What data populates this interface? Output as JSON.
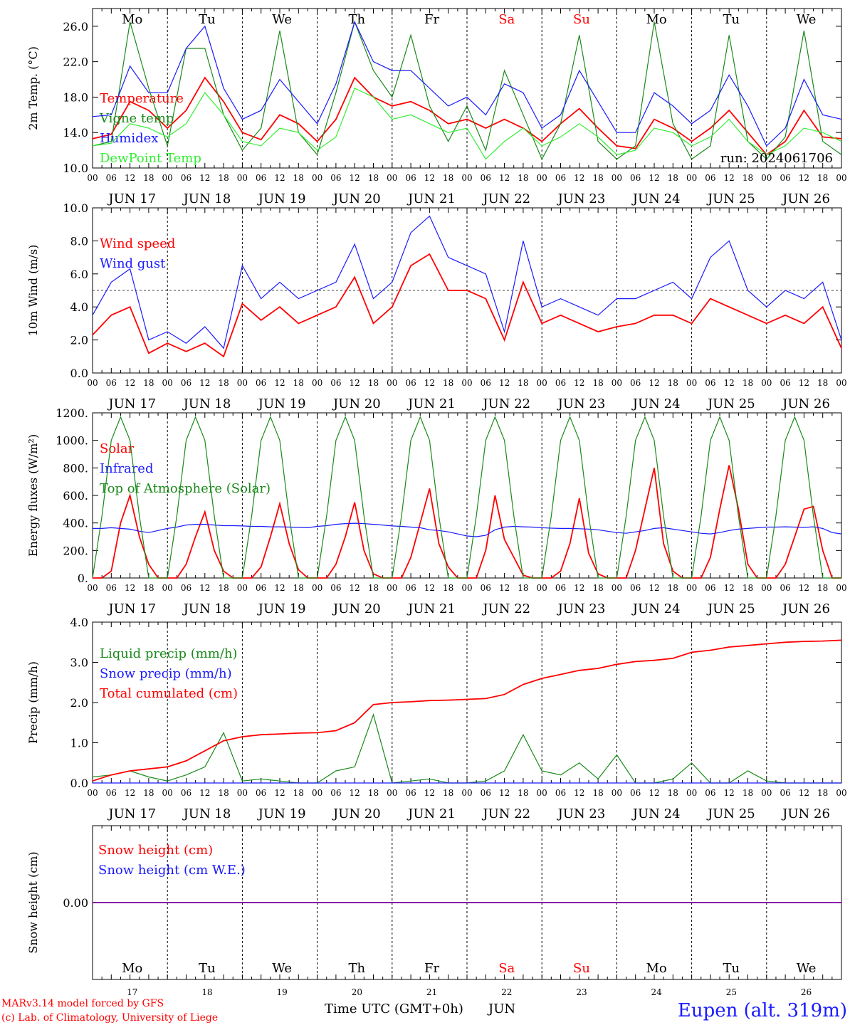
{
  "colors": {
    "red": "#ff0000",
    "darkgreen": "#1a8a1a",
    "blue": "#1a1aff",
    "lightgreen": "#33ee33",
    "purple": "#8000a0",
    "black": "#000000"
  },
  "weekdays": [
    {
      "label": "Mo",
      "weekend": false
    },
    {
      "label": "Tu",
      "weekend": false
    },
    {
      "label": "We",
      "weekend": false
    },
    {
      "label": "Th",
      "weekend": false
    },
    {
      "label": "Fr",
      "weekend": false
    },
    {
      "label": "Sa",
      "weekend": true
    },
    {
      "label": "Su",
      "weekend": true
    },
    {
      "label": "Mo",
      "weekend": false
    },
    {
      "label": "Tu",
      "weekend": false
    },
    {
      "label": "We",
      "weekend": false
    }
  ],
  "dates": [
    "JUN 17",
    "JUN 18",
    "JUN 19",
    "JUN 20",
    "JUN 21",
    "JUN 22",
    "JUN 23",
    "JUN 24",
    "JUN 25",
    "JUN 26"
  ],
  "day_numbers": [
    "17",
    "18",
    "19",
    "20",
    "21",
    "22",
    "23",
    "24",
    "25",
    "26"
  ],
  "hour_labels": [
    "00",
    "06",
    "12",
    "18"
  ],
  "bottom_xlabel": "Time UTC (GMT+0h)",
  "month_label": "JUN",
  "footer": {
    "model": "MARv3.14 model forced by GFS",
    "lab": "(c) Lab. of Climatology, University of Liege",
    "station": "Eupen (alt. 319m)"
  },
  "chart_data": [
    {
      "type": "line",
      "ylabel": "2m Temp. (°C)",
      "ylim": [
        10,
        28
      ],
      "yticks": [
        "10.0",
        "14.0",
        "18.0",
        "22.0",
        "26.0"
      ],
      "annotation": "run: 2024061706",
      "x_hours": [
        0,
        6,
        12,
        18,
        24,
        30,
        36,
        42,
        48,
        54,
        60,
        66,
        72,
        78,
        84,
        90,
        96,
        102,
        108,
        114,
        120,
        126,
        132,
        138,
        144,
        150,
        156,
        162,
        168,
        174,
        180,
        186,
        192,
        198,
        204,
        210,
        216,
        222,
        228,
        234,
        240
      ],
      "series": [
        {
          "name": "Temperature",
          "color": "red",
          "values": [
            13.3,
            13.8,
            17.5,
            16.5,
            14.5,
            16.5,
            20.2,
            17.5,
            14.0,
            13.2,
            16.0,
            15.0,
            13.0,
            15.5,
            20.2,
            18.0,
            17.0,
            17.5,
            16.5,
            15.0,
            15.5,
            14.5,
            15.5,
            14.5,
            13.0,
            15.0,
            16.7,
            14.5,
            12.5,
            12.2,
            15.5,
            14.5,
            13.0,
            14.5,
            16.5,
            14.0,
            11.5,
            13.0,
            16.5,
            13.5,
            13.3
          ]
        },
        {
          "name": "Vigne temp",
          "color": "darkgreen",
          "values": [
            12.5,
            13.0,
            26.5,
            19.0,
            12.5,
            23.5,
            23.5,
            16.0,
            12.0,
            14.5,
            25.5,
            14.0,
            11.5,
            18.5,
            26.5,
            21.0,
            18.0,
            25.0,
            17.0,
            13.0,
            17.0,
            12.0,
            21.0,
            16.0,
            11.0,
            15.0,
            25.0,
            13.0,
            11.0,
            12.5,
            26.5,
            15.0,
            11.0,
            12.5,
            25.0,
            13.0,
            11.0,
            13.5,
            25.5,
            13.0,
            11.5
          ]
        },
        {
          "name": "Humidex",
          "color": "blue",
          "values": [
            15.8,
            16.0,
            21.5,
            18.5,
            18.5,
            23.5,
            26.0,
            19.0,
            15.5,
            16.5,
            20.0,
            17.5,
            15.0,
            19.5,
            26.5,
            22.0,
            21.0,
            21.0,
            19.0,
            17.0,
            18.0,
            16.0,
            19.5,
            18.5,
            14.5,
            16.0,
            21.0,
            17.5,
            14.0,
            14.0,
            18.5,
            17.0,
            15.0,
            16.5,
            20.5,
            17.0,
            12.5,
            14.5,
            20.0,
            16.0,
            15.5
          ]
        },
        {
          "name": "DewPoint Temp",
          "color": "lightgreen",
          "values": [
            12.5,
            12.8,
            15.0,
            14.5,
            13.5,
            15.0,
            18.5,
            16.0,
            13.0,
            12.5,
            14.5,
            14.0,
            12.0,
            13.5,
            19.0,
            18.0,
            15.5,
            16.0,
            15.0,
            14.0,
            14.5,
            11.0,
            13.0,
            14.5,
            12.5,
            13.5,
            15.0,
            13.5,
            11.5,
            12.0,
            14.5,
            14.0,
            12.5,
            13.5,
            15.5,
            13.0,
            11.5,
            12.5,
            14.5,
            14.0,
            13.0
          ]
        }
      ]
    },
    {
      "type": "line",
      "ylabel": "10m Wind (m/s)",
      "ylim": [
        0,
        10
      ],
      "yticks": [
        "0.0",
        "2.0",
        "4.0",
        "6.0",
        "8.0",
        "10.0"
      ],
      "reference_line": 5.0,
      "x_hours": [
        0,
        6,
        12,
        18,
        24,
        30,
        36,
        42,
        48,
        54,
        60,
        66,
        72,
        78,
        84,
        90,
        96,
        102,
        108,
        114,
        120,
        126,
        132,
        138,
        144,
        150,
        156,
        162,
        168,
        174,
        180,
        186,
        192,
        198,
        204,
        210,
        216,
        222,
        228,
        234,
        240
      ],
      "series": [
        {
          "name": "Wind speed",
          "color": "red",
          "values": [
            2.3,
            3.5,
            4.0,
            1.2,
            1.8,
            1.3,
            1.8,
            1.0,
            4.2,
            3.2,
            4.0,
            3.0,
            3.5,
            4.0,
            5.8,
            3.0,
            4.0,
            6.5,
            7.2,
            5.0,
            5.0,
            4.5,
            2.0,
            5.5,
            3.0,
            3.5,
            3.0,
            2.5,
            2.8,
            3.0,
            3.5,
            3.5,
            3.0,
            4.5,
            4.0,
            3.5,
            3.0,
            3.5,
            3.0,
            4.0,
            1.5
          ]
        },
        {
          "name": "Wind gust",
          "color": "blue",
          "values": [
            3.5,
            5.5,
            6.3,
            2.0,
            2.5,
            1.8,
            2.8,
            1.5,
            6.5,
            4.5,
            5.5,
            4.5,
            5.0,
            5.5,
            7.8,
            4.5,
            5.5,
            8.5,
            9.5,
            7.0,
            6.5,
            6.0,
            2.5,
            8.0,
            4.0,
            4.5,
            4.0,
            3.5,
            4.5,
            4.5,
            5.0,
            5.5,
            4.5,
            7.0,
            8.0,
            5.0,
            4.0,
            5.0,
            4.5,
            5.5,
            2.0
          ]
        }
      ]
    },
    {
      "type": "line",
      "ylabel": "Energy fluxes (W/m²)",
      "ylim": [
        0,
        1200
      ],
      "yticks": [
        "0.",
        "200.",
        "400.",
        "600.",
        "800.",
        "1000.",
        "1200."
      ],
      "x_hours": [
        0,
        3,
        6,
        9,
        12,
        15,
        18,
        21,
        24,
        27,
        30,
        33,
        36,
        39,
        42,
        45,
        48,
        51,
        54,
        57,
        60,
        63,
        66,
        69,
        72,
        75,
        78,
        81,
        84,
        87,
        90,
        93,
        96,
        99,
        102,
        105,
        108,
        111,
        114,
        117,
        120,
        123,
        126,
        129,
        132,
        135,
        138,
        141,
        144,
        147,
        150,
        153,
        156,
        159,
        162,
        165,
        168,
        171,
        174,
        177,
        180,
        183,
        186,
        189,
        192,
        195,
        198,
        201,
        204,
        207,
        210,
        213,
        216,
        219,
        222,
        225,
        228,
        231,
        234,
        237,
        240
      ],
      "series": [
        {
          "name": "Solar",
          "color": "red",
          "values": [
            0,
            0,
            50,
            400,
            600,
            300,
            100,
            0,
            0,
            0,
            100,
            300,
            480,
            200,
            50,
            0,
            0,
            0,
            80,
            300,
            540,
            250,
            60,
            0,
            0,
            0,
            100,
            300,
            550,
            200,
            30,
            0,
            0,
            0,
            150,
            400,
            650,
            250,
            80,
            0,
            0,
            0,
            200,
            600,
            280,
            150,
            20,
            0,
            0,
            0,
            50,
            250,
            580,
            180,
            30,
            0,
            0,
            0,
            200,
            500,
            800,
            250,
            50,
            0,
            0,
            0,
            150,
            500,
            820,
            500,
            100,
            0,
            0,
            0,
            100,
            300,
            500,
            520,
            200,
            0,
            0
          ]
        },
        {
          "name": "Infrared",
          "color": "blue",
          "values": [
            360,
            360,
            365,
            360,
            355,
            340,
            330,
            345,
            360,
            370,
            385,
            390,
            390,
            385,
            380,
            380,
            378,
            375,
            375,
            372,
            372,
            370,
            368,
            365,
            375,
            380,
            390,
            395,
            398,
            395,
            390,
            385,
            378,
            375,
            370,
            365,
            350,
            345,
            335,
            320,
            305,
            300,
            310,
            350,
            370,
            375,
            372,
            370,
            365,
            362,
            360,
            360,
            358,
            355,
            350,
            340,
            330,
            325,
            335,
            345,
            360,
            365,
            355,
            345,
            335,
            325,
            320,
            330,
            345,
            355,
            360,
            365,
            370,
            370,
            372,
            370,
            368,
            372,
            360,
            330,
            320
          ]
        },
        {
          "name": "Top of Atmosphere (Solar)",
          "color": "darkgreen",
          "values": [
            0,
            450,
            1000,
            1170,
            1000,
            450,
            0,
            0,
            0,
            450,
            1000,
            1170,
            1000,
            450,
            0,
            0,
            0,
            450,
            1000,
            1170,
            1000,
            450,
            0,
            0,
            0,
            450,
            1000,
            1170,
            1000,
            450,
            0,
            0,
            0,
            450,
            1000,
            1170,
            1000,
            450,
            0,
            0,
            0,
            450,
            1000,
            1170,
            1000,
            450,
            0,
            0,
            0,
            450,
            1000,
            1170,
            1000,
            450,
            0,
            0,
            0,
            450,
            1000,
            1170,
            1000,
            450,
            0,
            0,
            0,
            450,
            1000,
            1170,
            1000,
            450,
            0,
            0,
            0,
            450,
            1000,
            1170,
            1000,
            450,
            0,
            0,
            0
          ]
        }
      ]
    },
    {
      "type": "line",
      "ylabel": "Precip (mm/h)",
      "ylim": [
        0,
        4
      ],
      "yticks": [
        "0.0",
        "1.0",
        "2.0",
        "3.0",
        "4.0"
      ],
      "x_hours": [
        0,
        6,
        12,
        18,
        24,
        30,
        36,
        42,
        48,
        54,
        60,
        66,
        72,
        78,
        84,
        90,
        96,
        102,
        108,
        114,
        120,
        126,
        132,
        138,
        144,
        150,
        156,
        162,
        168,
        174,
        180,
        186,
        192,
        198,
        204,
        210,
        216,
        222,
        228,
        234,
        240
      ],
      "series": [
        {
          "name": "Liquid precip (mm/h)",
          "color": "darkgreen",
          "values": [
            0.15,
            0.2,
            0.3,
            0.15,
            0.05,
            0.2,
            0.4,
            1.25,
            0.05,
            0.1,
            0.05,
            0.0,
            0.0,
            0.3,
            0.4,
            1.7,
            0.0,
            0.05,
            0.1,
            0.0,
            0.0,
            0.05,
            0.3,
            1.2,
            0.3,
            0.2,
            0.5,
            0.1,
            0.7,
            0.0,
            0.0,
            0.1,
            0.5,
            0.0,
            0.0,
            0.3,
            0.05,
            0.0,
            0.0,
            0.0,
            0.0
          ]
        },
        {
          "name": "Snow precip (mm/h)",
          "color": "blue",
          "values": [
            0,
            0,
            0,
            0,
            0,
            0,
            0,
            0,
            0,
            0,
            0,
            0,
            0,
            0,
            0,
            0,
            0,
            0,
            0,
            0,
            0,
            0,
            0,
            0,
            0,
            0,
            0,
            0,
            0,
            0,
            0,
            0,
            0,
            0,
            0,
            0,
            0,
            0,
            0,
            0,
            0
          ]
        },
        {
          "name": "Total cumulated (cm)",
          "color": "red",
          "values": [
            0.05,
            0.2,
            0.3,
            0.35,
            0.4,
            0.55,
            0.8,
            1.05,
            1.15,
            1.2,
            1.22,
            1.24,
            1.25,
            1.3,
            1.5,
            1.95,
            2.0,
            2.02,
            2.05,
            2.06,
            2.08,
            2.1,
            2.2,
            2.45,
            2.6,
            2.7,
            2.8,
            2.85,
            2.95,
            3.02,
            3.05,
            3.1,
            3.25,
            3.3,
            3.38,
            3.42,
            3.46,
            3.5,
            3.52,
            3.53,
            3.55
          ]
        }
      ]
    },
    {
      "type": "line",
      "ylabel": "Snow height (cm)",
      "ylim": [
        -1,
        1
      ],
      "yticks": [
        "0.00"
      ],
      "x_hours": [
        0,
        240
      ],
      "series": [
        {
          "name": "Snow height (cm)",
          "color": "red",
          "values": [
            0,
            0
          ]
        },
        {
          "name": "Snow height (cm W.E.)",
          "color": "blue",
          "values": [
            0,
            0
          ]
        }
      ]
    }
  ]
}
